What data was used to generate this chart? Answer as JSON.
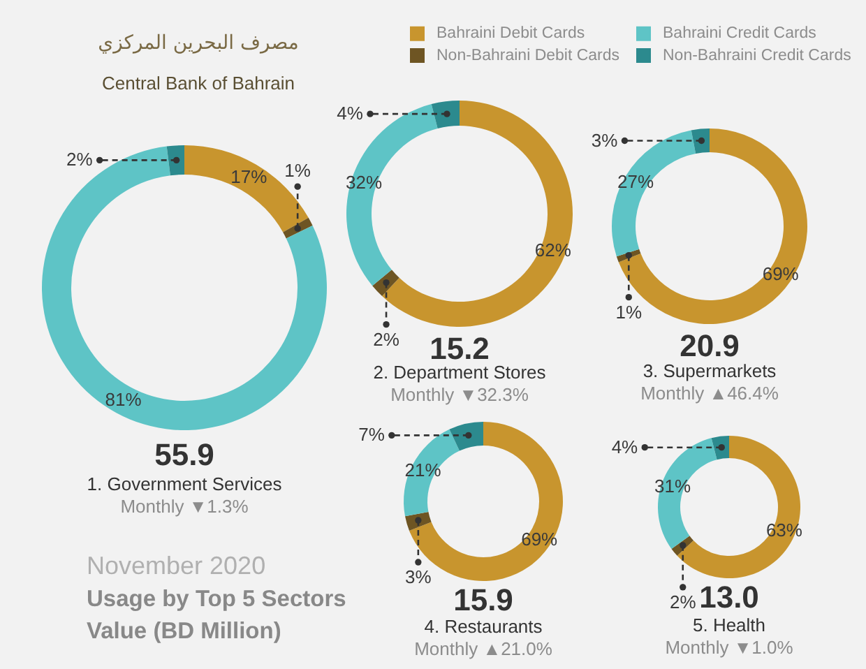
{
  "chart_data": [
    {
      "type": "other",
      "title": "مصرف البحرين المركزي",
      "subtitle": "Central Bank of Bahrain"
    },
    {
      "type": "donut",
      "title": "55.9",
      "subtitle": "1. Government Services",
      "annotations": [
        "Monthly ▼1.3%"
      ],
      "categories": [
        "Bahraini Debit Cards",
        "Non-Bahraini Debit Cards",
        "Bahraini Credit Cards",
        "Non-Bahraini Credit Cards"
      ],
      "values": [
        17,
        1,
        81,
        2
      ],
      "colors": [
        "#c8952e",
        "#6e5523",
        "#5ec4c6",
        "#2c8a8e"
      ],
      "value_labels": [
        "17%",
        "1%",
        "81%",
        "2%"
      ],
      "legend": "top right"
    },
    {
      "type": "donut",
      "title": "15.2",
      "subtitle": "2. Department Stores",
      "annotations": [
        "Monthly ▼32.3%"
      ],
      "values": [
        62,
        2,
        32,
        4
      ],
      "colors": [
        "#c8952e",
        "#6e5523",
        "#5ec4c6",
        "#2c8a8e"
      ],
      "value_labels": [
        "62%",
        "2%",
        "32%",
        "4%"
      ]
    },
    {
      "type": "donut",
      "title": "20.9",
      "subtitle": "3. Supermarkets",
      "annotations": [
        "Monthly ▲46.4%"
      ],
      "values": [
        69,
        1,
        27,
        3
      ],
      "colors": [
        "#c8952e",
        "#6e5523",
        "#5ec4c6",
        "#2c8a8e"
      ],
      "value_labels": [
        "69%",
        "1%",
        "27%",
        "3%"
      ]
    },
    {
      "type": "donut",
      "title": "15.9",
      "subtitle": "4. Restaurants",
      "annotations": [
        "Monthly ▲21.0%"
      ],
      "values": [
        69,
        3,
        21,
        7
      ],
      "colors": [
        "#c8952e",
        "#6e5523",
        "#5ec4c6",
        "#2c8a8e"
      ],
      "value_labels": [
        "69%",
        "3%",
        "21%",
        "7%"
      ]
    },
    {
      "type": "donut",
      "title": "13.0",
      "subtitle": "5. Health",
      "annotations": [
        "Monthly ▼1.0%"
      ],
      "values": [
        63,
        2,
        31,
        4
      ],
      "colors": [
        "#c8952e",
        "#6e5523",
        "#5ec4c6",
        "#2c8a8e"
      ],
      "value_labels": [
        "63%",
        "2%",
        "31%",
        "4%"
      ]
    },
    {
      "type": "other",
      "title": "Usage by Top 5 Sectors",
      "subtitle": "Value (BD Million)",
      "annotations": [
        "November 2020"
      ]
    }
  ]
}
